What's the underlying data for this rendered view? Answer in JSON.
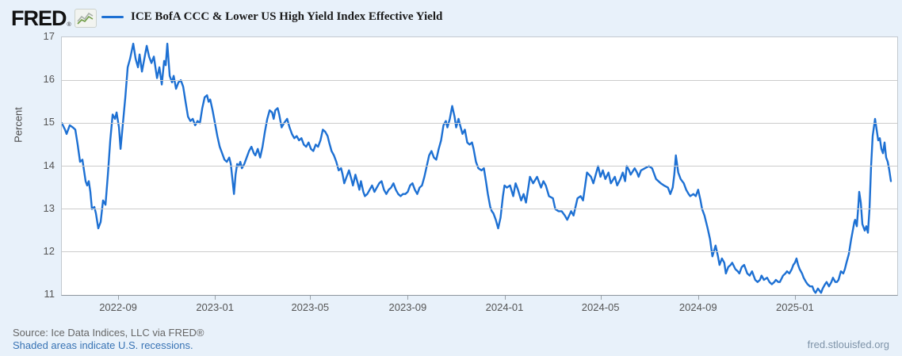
{
  "header": {
    "logo_text": "FRED",
    "logo_reg_mark": "®",
    "legend_label": "ICE BofA CCC & Lower US High Yield Index Effective Yield"
  },
  "footer": {
    "source_text": "Source: Ice Data Indices, LLC via FRED®",
    "recession_note": "Shaded areas indicate U.S. recessions.",
    "site_url": "fred.stlouisfed.org"
  },
  "colors": {
    "background": "#e8f1fa",
    "plot_background": "#ffffff",
    "line": "#1d70d3",
    "gridline": "#cccccc",
    "axis_text": "#555555"
  },
  "chart_data": {
    "type": "line",
    "title": "ICE BofA CCC & Lower US High Yield Index Effective Yield",
    "ylabel": "Percent",
    "xlabel": "",
    "ylim": [
      11,
      17
    ],
    "yticks": [
      11,
      12,
      13,
      14,
      15,
      16,
      17
    ],
    "grid": "horizontal",
    "legend_position": "top",
    "series_name": "ICE BofA CCC & Lower US High Yield Index Effective Yield",
    "x_start_date": "2022-06-21",
    "x_end_date": "2025-05-09",
    "xtick_labels": [
      "2022-09",
      "2023-01",
      "2023-05",
      "2023-09",
      "2024-01",
      "2024-05",
      "2024-09",
      "2025-01"
    ],
    "points_unit": "days_since_x_start_date",
    "points": [
      [
        0,
        15.0
      ],
      [
        4,
        14.85
      ],
      [
        6,
        14.75
      ],
      [
        10,
        14.95
      ],
      [
        14,
        14.9
      ],
      [
        17,
        14.85
      ],
      [
        20,
        14.5
      ],
      [
        23,
        14.1
      ],
      [
        26,
        14.15
      ],
      [
        30,
        13.65
      ],
      [
        32,
        13.55
      ],
      [
        34,
        13.65
      ],
      [
        36,
        13.4
      ],
      [
        38,
        13.0
      ],
      [
        41,
        13.05
      ],
      [
        43,
        12.9
      ],
      [
        46,
        12.55
      ],
      [
        49,
        12.7
      ],
      [
        52,
        13.2
      ],
      [
        55,
        13.1
      ],
      [
        58,
        13.8
      ],
      [
        61,
        14.6
      ],
      [
        64,
        15.2
      ],
      [
        67,
        15.1
      ],
      [
        69,
        15.25
      ],
      [
        72,
        14.9
      ],
      [
        74,
        14.4
      ],
      [
        77,
        15.0
      ],
      [
        80,
        15.6
      ],
      [
        83,
        16.3
      ],
      [
        86,
        16.5
      ],
      [
        90,
        16.85
      ],
      [
        93,
        16.5
      ],
      [
        96,
        16.3
      ],
      [
        98,
        16.6
      ],
      [
        101,
        16.2
      ],
      [
        104,
        16.5
      ],
      [
        107,
        16.8
      ],
      [
        110,
        16.55
      ],
      [
        113,
        16.4
      ],
      [
        116,
        16.55
      ],
      [
        120,
        16.05
      ],
      [
        123,
        16.3
      ],
      [
        126,
        15.9
      ],
      [
        129,
        16.45
      ],
      [
        131,
        16.35
      ],
      [
        133,
        16.85
      ],
      [
        136,
        16.1
      ],
      [
        139,
        15.95
      ],
      [
        141,
        16.1
      ],
      [
        144,
        15.8
      ],
      [
        147,
        15.95
      ],
      [
        150,
        16.0
      ],
      [
        153,
        15.85
      ],
      [
        156,
        15.5
      ],
      [
        159,
        15.15
      ],
      [
        162,
        15.05
      ],
      [
        165,
        15.1
      ],
      [
        168,
        14.95
      ],
      [
        171,
        15.05
      ],
      [
        174,
        15.0
      ],
      [
        177,
        15.35
      ],
      [
        180,
        15.6
      ],
      [
        183,
        15.65
      ],
      [
        185,
        15.5
      ],
      [
        187,
        15.55
      ],
      [
        190,
        15.3
      ],
      [
        193,
        15.0
      ],
      [
        196,
        14.7
      ],
      [
        199,
        14.45
      ],
      [
        202,
        14.3
      ],
      [
        205,
        14.15
      ],
      [
        208,
        14.1
      ],
      [
        211,
        14.2
      ],
      [
        213,
        14.05
      ],
      [
        215,
        13.7
      ],
      [
        217,
        13.35
      ],
      [
        219,
        13.8
      ],
      [
        221,
        14.05
      ],
      [
        223,
        14.0
      ],
      [
        225,
        14.1
      ],
      [
        227,
        13.95
      ],
      [
        230,
        14.05
      ],
      [
        233,
        14.2
      ],
      [
        236,
        14.35
      ],
      [
        239,
        14.45
      ],
      [
        242,
        14.3
      ],
      [
        244,
        14.25
      ],
      [
        247,
        14.4
      ],
      [
        250,
        14.2
      ],
      [
        253,
        14.45
      ],
      [
        256,
        14.8
      ],
      [
        259,
        15.1
      ],
      [
        262,
        15.3
      ],
      [
        265,
        15.25
      ],
      [
        267,
        15.1
      ],
      [
        269,
        15.3
      ],
      [
        272,
        15.35
      ],
      [
        274,
        15.2
      ],
      [
        277,
        14.9
      ],
      [
        280,
        15.0
      ],
      [
        284,
        15.1
      ],
      [
        287,
        14.9
      ],
      [
        290,
        14.75
      ],
      [
        293,
        14.65
      ],
      [
        296,
        14.7
      ],
      [
        299,
        14.6
      ],
      [
        302,
        14.65
      ],
      [
        305,
        14.5
      ],
      [
        308,
        14.45
      ],
      [
        311,
        14.55
      ],
      [
        314,
        14.4
      ],
      [
        317,
        14.35
      ],
      [
        320,
        14.5
      ],
      [
        323,
        14.45
      ],
      [
        326,
        14.6
      ],
      [
        329,
        14.85
      ],
      [
        332,
        14.8
      ],
      [
        335,
        14.7
      ],
      [
        337,
        14.55
      ],
      [
        340,
        14.35
      ],
      [
        343,
        14.25
      ],
      [
        346,
        14.1
      ],
      [
        349,
        13.9
      ],
      [
        352,
        13.95
      ],
      [
        354,
        13.8
      ],
      [
        356,
        13.6
      ],
      [
        359,
        13.75
      ],
      [
        362,
        13.9
      ],
      [
        365,
        13.7
      ],
      [
        367,
        13.55
      ],
      [
        370,
        13.8
      ],
      [
        373,
        13.6
      ],
      [
        375,
        13.45
      ],
      [
        377,
        13.65
      ],
      [
        380,
        13.4
      ],
      [
        382,
        13.3
      ],
      [
        385,
        13.35
      ],
      [
        388,
        13.45
      ],
      [
        391,
        13.55
      ],
      [
        394,
        13.4
      ],
      [
        397,
        13.5
      ],
      [
        400,
        13.6
      ],
      [
        403,
        13.65
      ],
      [
        406,
        13.45
      ],
      [
        409,
        13.35
      ],
      [
        412,
        13.45
      ],
      [
        415,
        13.5
      ],
      [
        418,
        13.6
      ],
      [
        421,
        13.45
      ],
      [
        424,
        13.35
      ],
      [
        427,
        13.3
      ],
      [
        430,
        13.35
      ],
      [
        433,
        13.35
      ],
      [
        436,
        13.4
      ],
      [
        439,
        13.55
      ],
      [
        442,
        13.6
      ],
      [
        445,
        13.45
      ],
      [
        448,
        13.35
      ],
      [
        451,
        13.5
      ],
      [
        454,
        13.55
      ],
      [
        457,
        13.75
      ],
      [
        460,
        14.0
      ],
      [
        463,
        14.25
      ],
      [
        466,
        14.35
      ],
      [
        469,
        14.2
      ],
      [
        472,
        14.15
      ],
      [
        475,
        14.4
      ],
      [
        478,
        14.6
      ],
      [
        481,
        14.95
      ],
      [
        484,
        15.05
      ],
      [
        486,
        14.9
      ],
      [
        489,
        15.1
      ],
      [
        492,
        15.4
      ],
      [
        495,
        15.15
      ],
      [
        497,
        14.9
      ],
      [
        500,
        15.1
      ],
      [
        502,
        14.95
      ],
      [
        505,
        14.75
      ],
      [
        508,
        14.85
      ],
      [
        511,
        14.55
      ],
      [
        514,
        14.5
      ],
      [
        517,
        14.55
      ],
      [
        519,
        14.4
      ],
      [
        522,
        14.1
      ],
      [
        525,
        13.95
      ],
      [
        529,
        13.9
      ],
      [
        532,
        13.95
      ],
      [
        535,
        13.6
      ],
      [
        537,
        13.35
      ],
      [
        540,
        13.05
      ],
      [
        542,
        12.95
      ],
      [
        544,
        12.9
      ],
      [
        547,
        12.75
      ],
      [
        550,
        12.55
      ],
      [
        553,
        12.8
      ],
      [
        556,
        13.3
      ],
      [
        558,
        13.55
      ],
      [
        561,
        13.5
      ],
      [
        565,
        13.55
      ],
      [
        569,
        13.3
      ],
      [
        572,
        13.6
      ],
      [
        575,
        13.45
      ],
      [
        579,
        13.2
      ],
      [
        582,
        13.35
      ],
      [
        585,
        13.15
      ],
      [
        588,
        13.5
      ],
      [
        590,
        13.75
      ],
      [
        594,
        13.6
      ],
      [
        599,
        13.75
      ],
      [
        602,
        13.6
      ],
      [
        604,
        13.5
      ],
      [
        607,
        13.65
      ],
      [
        610,
        13.55
      ],
      [
        614,
        13.3
      ],
      [
        619,
        13.25
      ],
      [
        622,
        13.0
      ],
      [
        626,
        12.95
      ],
      [
        630,
        12.95
      ],
      [
        634,
        12.85
      ],
      [
        637,
        12.75
      ],
      [
        642,
        12.95
      ],
      [
        645,
        12.85
      ],
      [
        650,
        13.25
      ],
      [
        654,
        13.3
      ],
      [
        657,
        13.2
      ],
      [
        662,
        13.85
      ],
      [
        667,
        13.75
      ],
      [
        670,
        13.6
      ],
      [
        673,
        13.8
      ],
      [
        676,
        14.0
      ],
      [
        679,
        13.75
      ],
      [
        682,
        13.9
      ],
      [
        685,
        13.7
      ],
      [
        689,
        13.85
      ],
      [
        692,
        13.6
      ],
      [
        697,
        13.75
      ],
      [
        700,
        13.55
      ],
      [
        704,
        13.7
      ],
      [
        707,
        13.85
      ],
      [
        710,
        13.65
      ],
      [
        712,
        14.0
      ],
      [
        715,
        13.9
      ],
      [
        717,
        13.8
      ],
      [
        722,
        13.95
      ],
      [
        725,
        13.85
      ],
      [
        727,
        13.75
      ],
      [
        730,
        13.9
      ],
      [
        735,
        13.95
      ],
      [
        740,
        14.0
      ],
      [
        744,
        13.95
      ],
      [
        749,
        13.7
      ],
      [
        755,
        13.6
      ],
      [
        759,
        13.55
      ],
      [
        764,
        13.5
      ],
      [
        767,
        13.35
      ],
      [
        770,
        13.5
      ],
      [
        772,
        13.8
      ],
      [
        774,
        14.25
      ],
      [
        777,
        13.85
      ],
      [
        780,
        13.7
      ],
      [
        784,
        13.6
      ],
      [
        787,
        13.45
      ],
      [
        790,
        13.35
      ],
      [
        792,
        13.3
      ],
      [
        796,
        13.35
      ],
      [
        799,
        13.3
      ],
      [
        802,
        13.45
      ],
      [
        805,
        13.2
      ],
      [
        807,
        13.0
      ],
      [
        810,
        12.85
      ],
      [
        814,
        12.55
      ],
      [
        817,
        12.3
      ],
      [
        820,
        11.9
      ],
      [
        824,
        12.15
      ],
      [
        827,
        11.9
      ],
      [
        829,
        11.7
      ],
      [
        832,
        11.85
      ],
      [
        835,
        11.75
      ],
      [
        837,
        11.5
      ],
      [
        840,
        11.65
      ],
      [
        843,
        11.7
      ],
      [
        845,
        11.75
      ],
      [
        849,
        11.6
      ],
      [
        852,
        11.55
      ],
      [
        854,
        11.5
      ],
      [
        857,
        11.65
      ],
      [
        860,
        11.7
      ],
      [
        864,
        11.5
      ],
      [
        867,
        11.45
      ],
      [
        870,
        11.55
      ],
      [
        874,
        11.35
      ],
      [
        877,
        11.3
      ],
      [
        880,
        11.35
      ],
      [
        882,
        11.45
      ],
      [
        885,
        11.35
      ],
      [
        889,
        11.4
      ],
      [
        892,
        11.3
      ],
      [
        895,
        11.25
      ],
      [
        898,
        11.3
      ],
      [
        900,
        11.35
      ],
      [
        903,
        11.3
      ],
      [
        905,
        11.3
      ],
      [
        909,
        11.45
      ],
      [
        912,
        11.5
      ],
      [
        914,
        11.55
      ],
      [
        917,
        11.5
      ],
      [
        920,
        11.6
      ],
      [
        922,
        11.7
      ],
      [
        924,
        11.75
      ],
      [
        926,
        11.85
      ],
      [
        928,
        11.7
      ],
      [
        930,
        11.6
      ],
      [
        933,
        11.5
      ],
      [
        935,
        11.4
      ],
      [
        938,
        11.3
      ],
      [
        940,
        11.25
      ],
      [
        943,
        11.2
      ],
      [
        946,
        11.2
      ],
      [
        948,
        11.1
      ],
      [
        950,
        11.05
      ],
      [
        953,
        11.15
      ],
      [
        955,
        11.1
      ],
      [
        957,
        11.05
      ],
      [
        959,
        11.15
      ],
      [
        962,
        11.25
      ],
      [
        964,
        11.3
      ],
      [
        967,
        11.2
      ],
      [
        970,
        11.3
      ],
      [
        972,
        11.4
      ],
      [
        975,
        11.3
      ],
      [
        977,
        11.3
      ],
      [
        979,
        11.35
      ],
      [
        982,
        11.55
      ],
      [
        985,
        11.5
      ],
      [
        987,
        11.6
      ],
      [
        989,
        11.75
      ],
      [
        992,
        11.95
      ],
      [
        995,
        12.3
      ],
      [
        997,
        12.5
      ],
      [
        999,
        12.7
      ],
      [
        1000,
        12.75
      ],
      [
        1002,
        12.6
      ],
      [
        1004,
        13.1
      ],
      [
        1005,
        13.4
      ],
      [
        1007,
        13.15
      ],
      [
        1009,
        12.65
      ],
      [
        1012,
        12.5
      ],
      [
        1014,
        12.6
      ],
      [
        1016,
        12.45
      ],
      [
        1018,
        13.0
      ],
      [
        1019,
        13.5
      ],
      [
        1020,
        14.0
      ],
      [
        1022,
        14.7
      ],
      [
        1025,
        15.1
      ],
      [
        1027,
        14.85
      ],
      [
        1029,
        14.6
      ],
      [
        1031,
        14.65
      ],
      [
        1033,
        14.4
      ],
      [
        1035,
        14.3
      ],
      [
        1037,
        14.55
      ],
      [
        1039,
        14.2
      ],
      [
        1041,
        14.1
      ],
      [
        1043,
        13.9
      ],
      [
        1045,
        13.65
      ]
    ]
  }
}
